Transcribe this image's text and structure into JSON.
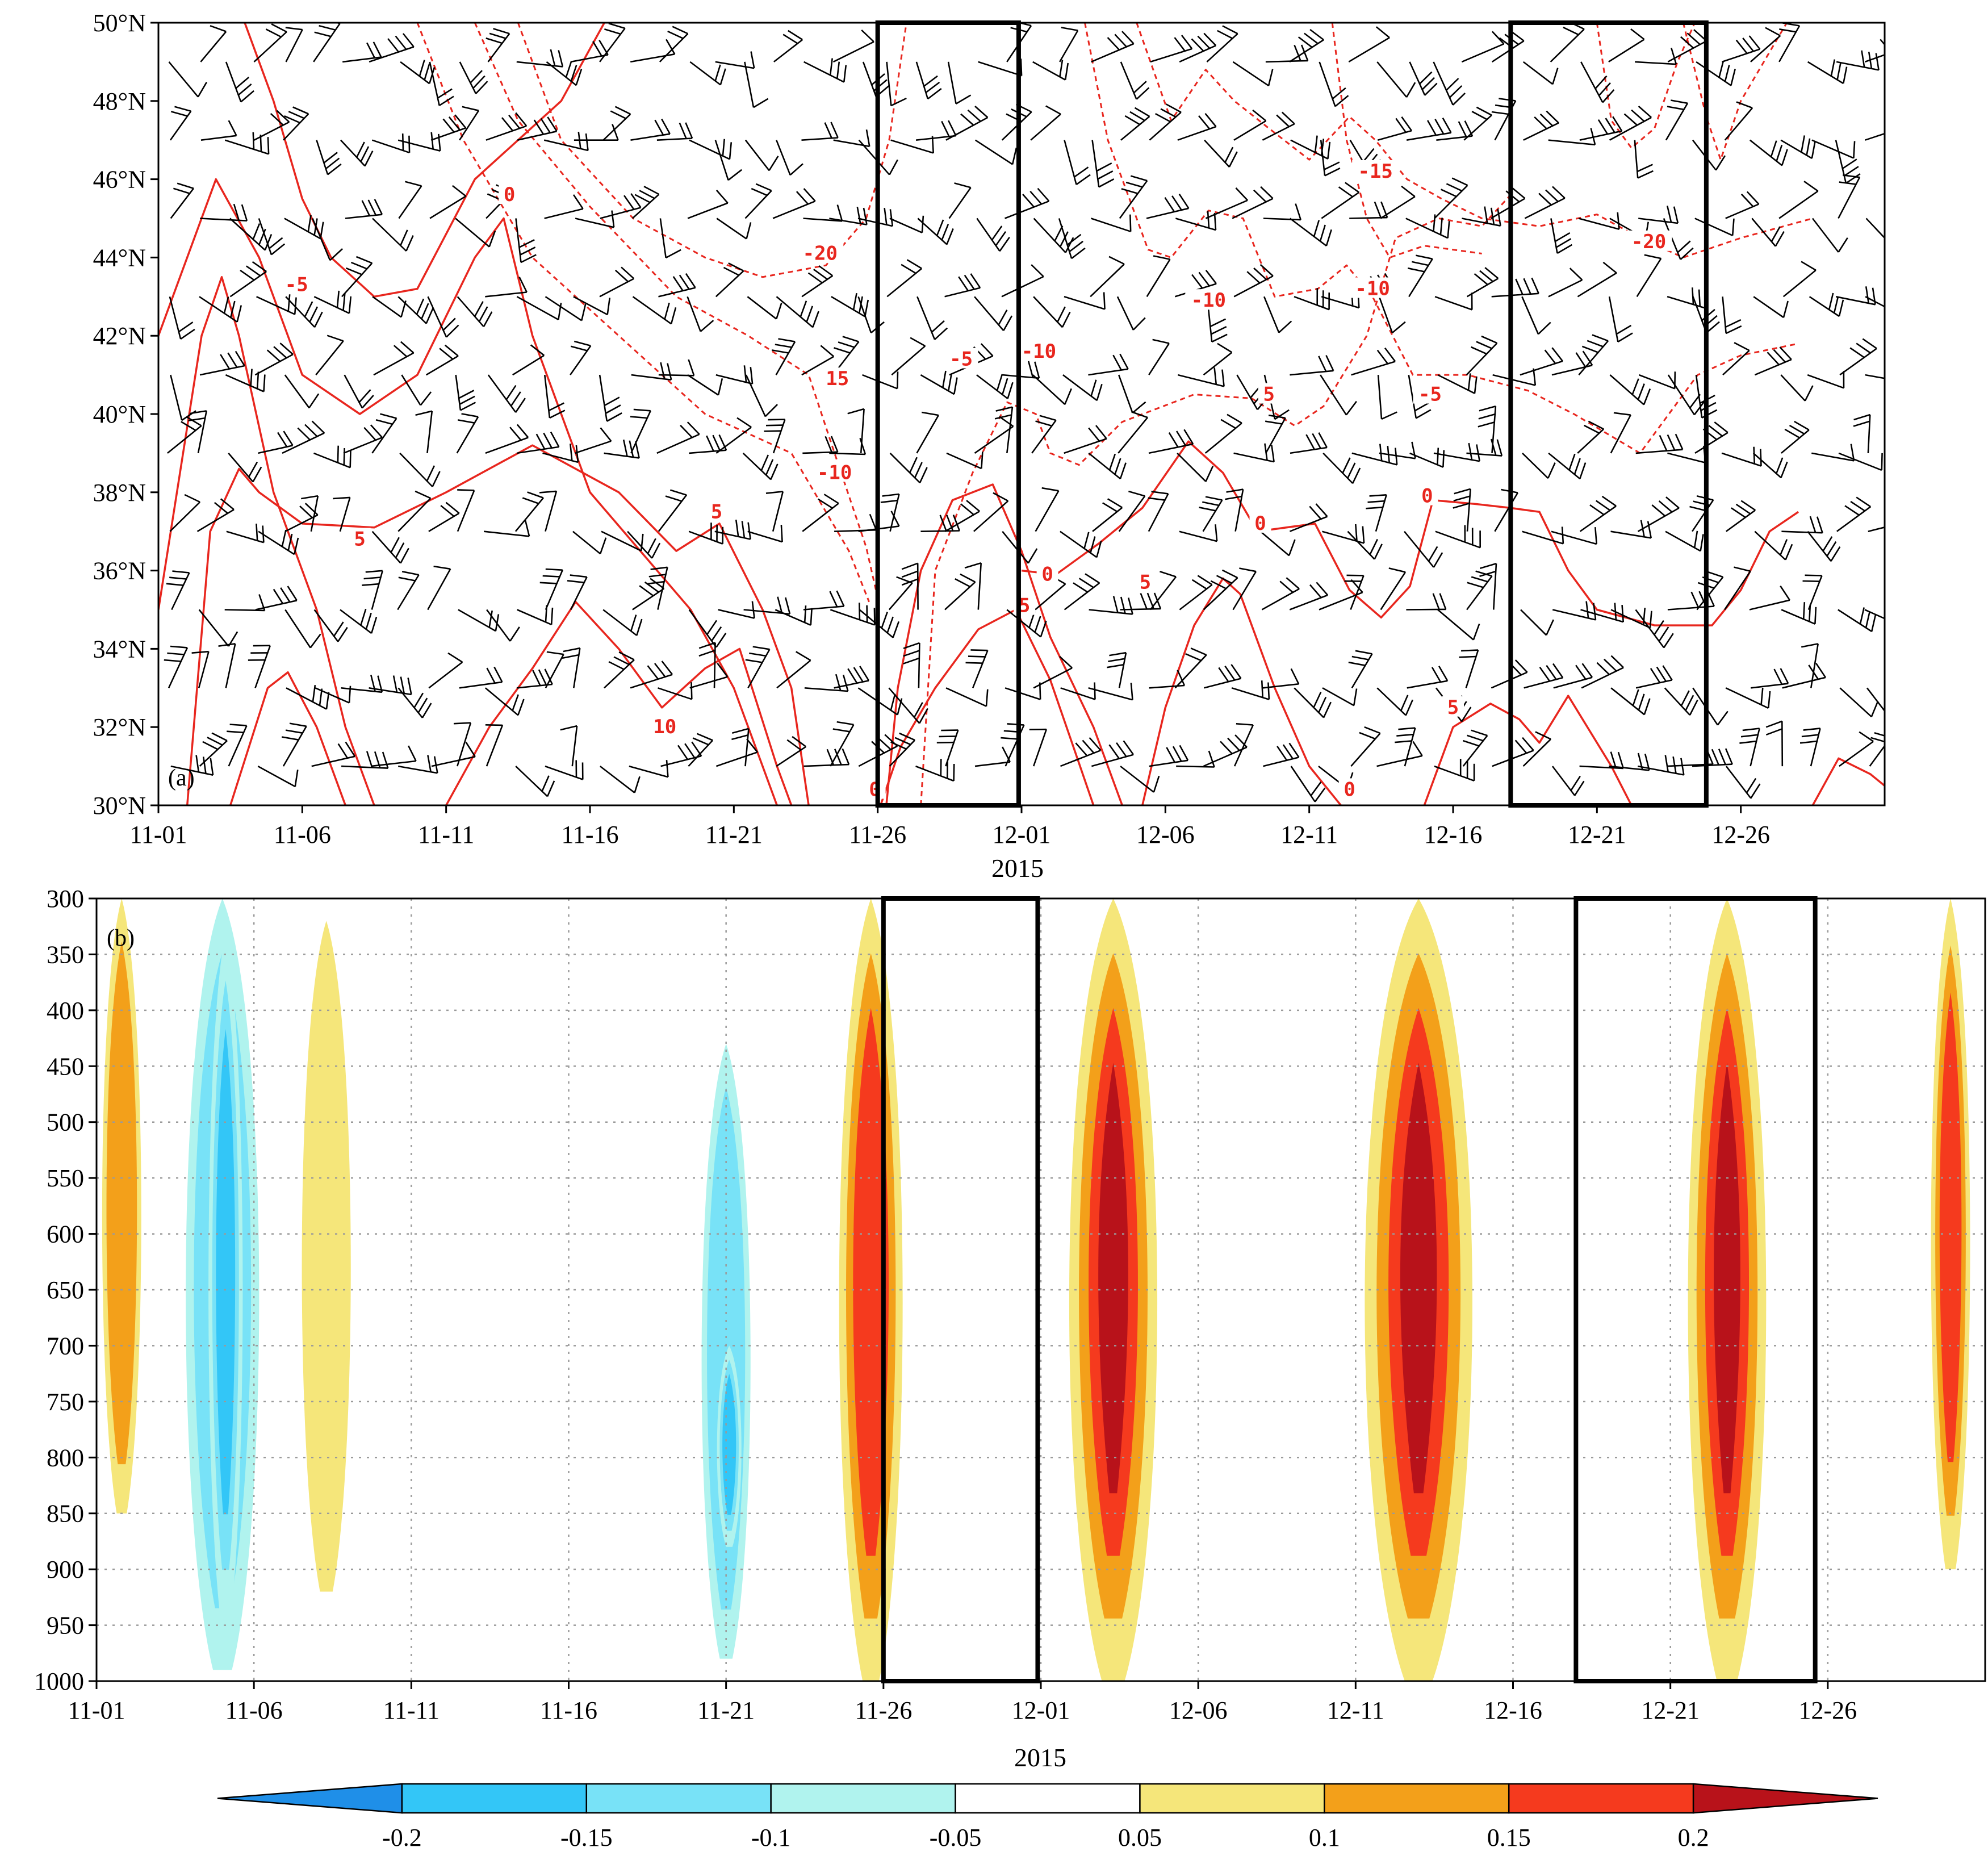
{
  "chart_data": [
    {
      "type": "contour",
      "panel_label": "(a)",
      "description_kind": "latitude-time section with wind barbs and temperature contours",
      "xlabel": "2015",
      "x_ticks": [
        "11-01",
        "11-06",
        "11-11",
        "11-16",
        "11-21",
        "11-26",
        "12-01",
        "12-06",
        "12-11",
        "12-16",
        "12-21",
        "12-26"
      ],
      "x_range_days": [
        0,
        60
      ],
      "y_ticks": [
        "30°N",
        "32°N",
        "34°N",
        "36°N",
        "38°N",
        "40°N",
        "42°N",
        "44°N",
        "46°N",
        "48°N",
        "50°N"
      ],
      "ylim": [
        30,
        50
      ],
      "barb_latitudes": [
        31,
        33,
        35,
        37,
        39,
        41,
        43,
        45,
        47,
        49
      ],
      "contour_color": "#e8261e",
      "contour_labels": [
        {
          "text": "0",
          "day": 12.2,
          "lat": 45.6
        },
        {
          "text": "-5",
          "day": 4.8,
          "lat": 43.3
        },
        {
          "text": "5",
          "day": 7.0,
          "lat": 36.8
        },
        {
          "text": "5",
          "day": 19.4,
          "lat": 37.5
        },
        {
          "text": "10",
          "day": 17.6,
          "lat": 32.0
        },
        {
          "text": "-20",
          "day": 23.0,
          "lat": 44.1
        },
        {
          "text": "15",
          "day": 23.6,
          "lat": 40.9
        },
        {
          "text": "-10",
          "day": 23.5,
          "lat": 38.5
        },
        {
          "text": "0",
          "day": 24.9,
          "lat": 30.4
        },
        {
          "text": "-5",
          "day": 27.9,
          "lat": 41.4
        },
        {
          "text": "-10",
          "day": 30.6,
          "lat": 41.6
        },
        {
          "text": "0",
          "day": 30.9,
          "lat": 35.9
        },
        {
          "text": "5",
          "day": 30.1,
          "lat": 35.1
        },
        {
          "text": "5",
          "day": 34.3,
          "lat": 35.7
        },
        {
          "text": "-10",
          "day": 36.5,
          "lat": 42.9
        },
        {
          "text": "5",
          "day": 38.6,
          "lat": 40.5
        },
        {
          "text": "0",
          "day": 38.3,
          "lat": 37.2
        },
        {
          "text": "0",
          "day": 41.4,
          "lat": 30.4
        },
        {
          "text": "-15",
          "day": 42.3,
          "lat": 46.2
        },
        {
          "text": "-10",
          "day": 42.2,
          "lat": 43.2
        },
        {
          "text": "-5",
          "day": 44.2,
          "lat": 40.5
        },
        {
          "text": "0",
          "day": 44.1,
          "lat": 37.9
        },
        {
          "text": "5",
          "day": 45.0,
          "lat": 32.5
        },
        {
          "text": "-20",
          "day": 51.8,
          "lat": 44.4
        }
      ],
      "highlight_boxes_days": [
        [
          25.0,
          29.9
        ],
        [
          47.0,
          53.8
        ]
      ]
    },
    {
      "type": "heatmap",
      "panel_label": "(b)",
      "xlabel": "2015",
      "x_ticks": [
        "11-01",
        "11-06",
        "11-11",
        "11-16",
        "11-21",
        "11-26",
        "12-01",
        "12-06",
        "12-11",
        "12-16",
        "12-21",
        "12-26"
      ],
      "x_range_days": [
        0,
        60
      ],
      "y_ticks": [
        "300",
        "350",
        "400",
        "450",
        "500",
        "550",
        "600",
        "650",
        "700",
        "750",
        "800",
        "850",
        "900",
        "950",
        "1000"
      ],
      "y_values_hpa": [
        300,
        350,
        400,
        450,
        500,
        550,
        600,
        650,
        700,
        750,
        800,
        850,
        900,
        950,
        1000
      ],
      "ylim": [
        1000,
        300
      ],
      "colorbar": {
        "tick_labels": [
          "-0.2",
          "-0.15",
          "-0.1",
          "-0.05",
          "0.05",
          "0.1",
          "0.15",
          "0.2"
        ],
        "tick_values": [
          -0.2,
          -0.15,
          -0.1,
          -0.05,
          0.05,
          0.1,
          0.15,
          0.2
        ],
        "colors": [
          "#1f8fe8",
          "#33c6f7",
          "#78e2f7",
          "#b0f3ee",
          "#ffffff",
          "#f5e67a",
          "#f3a01a",
          "#f53a1e",
          "#b8121a"
        ]
      },
      "highlight_boxes_days": [
        [
          25.0,
          29.9
        ],
        [
          47.0,
          54.6
        ]
      ],
      "features": [
        {
          "day_center": 0.8,
          "half_width_days": 0.8,
          "p_top": 300,
          "p_bottom": 850,
          "value": 0.1
        },
        {
          "day_center": 4.0,
          "half_width_days": 1.5,
          "p_top": 300,
          "p_bottom": 990,
          "value": -0.1
        },
        {
          "day_center": 4.1,
          "half_width_days": 0.7,
          "p_top": 330,
          "p_bottom": 950,
          "value": -0.15
        },
        {
          "day_center": 7.3,
          "half_width_days": 1.0,
          "p_top": 320,
          "p_bottom": 920,
          "value": 0.05
        },
        {
          "day_center": 20.0,
          "half_width_days": 1.0,
          "p_top": 430,
          "p_bottom": 980,
          "value": -0.1
        },
        {
          "day_center": 20.1,
          "half_width_days": 0.5,
          "p_top": 700,
          "p_bottom": 880,
          "value": -0.15
        },
        {
          "day_center": 24.6,
          "half_width_days": 1.3,
          "p_top": 300,
          "p_bottom": 1000,
          "value": 0.15
        },
        {
          "day_center": 32.3,
          "half_width_days": 1.8,
          "p_top": 300,
          "p_bottom": 1000,
          "value": 0.2
        },
        {
          "day_center": 42.0,
          "half_width_days": 2.2,
          "p_top": 300,
          "p_bottom": 1000,
          "value": 0.2
        },
        {
          "day_center": 51.8,
          "half_width_days": 1.6,
          "p_top": 300,
          "p_bottom": 1000,
          "value": 0.2
        },
        {
          "day_center": 58.9,
          "half_width_days": 0.8,
          "p_top": 300,
          "p_bottom": 900,
          "value": 0.15
        }
      ]
    }
  ]
}
